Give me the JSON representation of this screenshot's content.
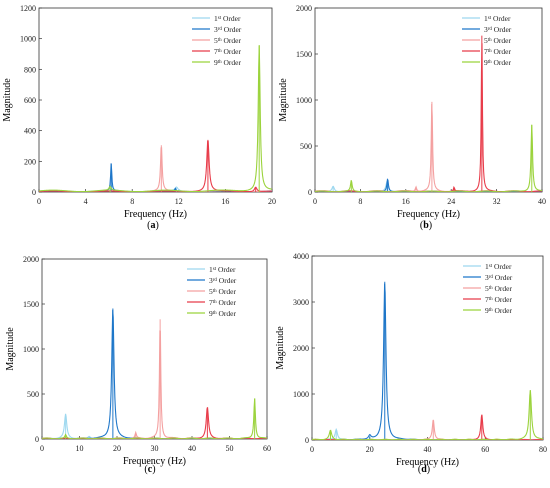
{
  "colors": {
    "1st": "#9ed8ef",
    "3rd": "#1f77c9",
    "5th": "#f4a0a0",
    "7th": "#e83c4a",
    "9th": "#9bd33c"
  },
  "legend_entries": [
    {
      "key": "1st",
      "base": "1",
      "sup": "st",
      "rest": " Order"
    },
    {
      "key": "3rd",
      "base": "3",
      "sup": "rd",
      "rest": " Order"
    },
    {
      "key": "5th",
      "base": "5",
      "sup": "th",
      "rest": " Order"
    },
    {
      "key": "7th",
      "base": "7",
      "sup": "th",
      "rest": " Order"
    },
    {
      "key": "9th",
      "base": "9",
      "sup": "th",
      "rest": " Order"
    }
  ],
  "panel_labels": [
    "a",
    "b",
    "c",
    "d"
  ],
  "chart_data": [
    {
      "type": "line",
      "panel": "a",
      "xlabel": "Frequency (Hz)",
      "ylabel": "Magnitude",
      "xlim": [
        0,
        20
      ],
      "ylim": [
        0,
        1200
      ],
      "xticks": [
        0,
        4,
        8,
        12,
        16,
        20
      ],
      "yticks": [
        0,
        200,
        400,
        600,
        800,
        1000,
        1200
      ],
      "grid": false,
      "legend": "top-right",
      "series": [
        {
          "name": "1st Order",
          "key": "1st",
          "peaks": [
            [
              6.2,
              35
            ],
            [
              11.8,
              25
            ]
          ],
          "width": 0.15,
          "base": 10
        },
        {
          "name": "3rd Order",
          "key": "3rd",
          "peaks": [
            [
              6.2,
              185
            ],
            [
              11.7,
              20
            ]
          ],
          "width": 0.06,
          "base": 6
        },
        {
          "name": "5th Order",
          "key": "5th",
          "peaks": [
            [
              10.5,
              305
            ]
          ],
          "width": 0.08,
          "base": 8
        },
        {
          "name": "7th Order",
          "key": "7th",
          "peaks": [
            [
              14.5,
              340
            ],
            [
              18.6,
              30
            ]
          ],
          "width": 0.12,
          "base": 6
        },
        {
          "name": "9th Order",
          "key": "9th",
          "peaks": [
            [
              18.9,
              955
            ],
            [
              6.1,
              25
            ]
          ],
          "width": 0.1,
          "base": 12
        }
      ]
    },
    {
      "type": "line",
      "panel": "b",
      "xlabel": "Frequency (Hz)",
      "ylabel": "Magnitude",
      "xlim": [
        0,
        40
      ],
      "ylim": [
        0,
        2000
      ],
      "xticks": [
        0,
        8,
        16,
        24,
        32,
        40
      ],
      "yticks": [
        0,
        500,
        1000,
        1500,
        2000
      ],
      "grid": false,
      "legend": "top-right",
      "series": [
        {
          "name": "1st Order",
          "key": "1st",
          "peaks": [
            [
              3.2,
              60
            ],
            [
              12.7,
              110
            ]
          ],
          "width": 0.12,
          "base": 10
        },
        {
          "name": "3rd Order",
          "key": "3rd",
          "peaks": [
            [
              12.8,
              140
            ]
          ],
          "width": 0.08,
          "base": 8
        },
        {
          "name": "5th Order",
          "key": "5th",
          "peaks": [
            [
              20.6,
              980
            ],
            [
              17.8,
              50
            ]
          ],
          "width": 0.07,
          "base": 15
        },
        {
          "name": "7th Order",
          "key": "7th",
          "peaks": [
            [
              29.4,
              1700
            ],
            [
              24.5,
              45
            ]
          ],
          "width": 0.06,
          "base": 10
        },
        {
          "name": "9th Order",
          "key": "9th",
          "peaks": [
            [
              38.2,
              730
            ],
            [
              6.4,
              120
            ]
          ],
          "width": 0.08,
          "base": 10
        }
      ]
    },
    {
      "type": "line",
      "panel": "c",
      "xlabel": "Frequency (Hz)",
      "ylabel": "Magnitude",
      "xlim": [
        0,
        60
      ],
      "ylim": [
        0,
        2000
      ],
      "xticks": [
        0,
        10,
        20,
        30,
        40,
        50,
        60
      ],
      "yticks": [
        0,
        500,
        1000,
        1500,
        2000
      ],
      "grid": false,
      "legend": "top-right",
      "series": [
        {
          "name": "1st Order",
          "key": "1st",
          "peaks": [
            [
              6.3,
              270
            ],
            [
              12.6,
              25
            ]
          ],
          "width": 0.12,
          "base": 10
        },
        {
          "name": "3rd Order",
          "key": "3rd",
          "peaks": [
            [
              18.9,
              1450
            ]
          ],
          "width": 0.12,
          "base": 8
        },
        {
          "name": "5th Order",
          "key": "5th",
          "peaks": [
            [
              31.5,
              1330
            ],
            [
              25.0,
              60
            ]
          ],
          "width": 0.07,
          "base": 12
        },
        {
          "name": "7th Order",
          "key": "7th",
          "peaks": [
            [
              44.1,
              350
            ]
          ],
          "width": 0.12,
          "base": 8
        },
        {
          "name": "9th Order",
          "key": "9th",
          "peaks": [
            [
              56.7,
              450
            ],
            [
              6.3,
              40
            ]
          ],
          "width": 0.08,
          "base": 10
        }
      ]
    },
    {
      "type": "line",
      "panel": "d",
      "xlabel": "Frequency (Hz)",
      "ylabel": "Magnitude",
      "xlim": [
        0,
        80
      ],
      "ylim": [
        0,
        4000
      ],
      "xticks": [
        0,
        20,
        40,
        60,
        80
      ],
      "yticks": [
        0,
        1000,
        2000,
        3000,
        4000
      ],
      "grid": false,
      "legend": "top-right",
      "series": [
        {
          "name": "1st Order",
          "key": "1st",
          "peaks": [
            [
              8.4,
              230
            ]
          ],
          "width": 0.12,
          "base": 10
        },
        {
          "name": "3rd Order",
          "key": "3rd",
          "peaks": [
            [
              25.2,
              3440
            ],
            [
              20.0,
              80
            ]
          ],
          "width": 0.12,
          "base": 10
        },
        {
          "name": "5th Order",
          "key": "5th",
          "peaks": [
            [
              42.0,
              440
            ]
          ],
          "width": 0.1,
          "base": 12
        },
        {
          "name": "7th Order",
          "key": "7th",
          "peaks": [
            [
              58.8,
              550
            ]
          ],
          "width": 0.1,
          "base": 8
        },
        {
          "name": "9th Order",
          "key": "9th",
          "peaks": [
            [
              75.6,
              1080
            ],
            [
              6.4,
              200
            ]
          ],
          "width": 0.12,
          "base": 15
        }
      ]
    }
  ]
}
